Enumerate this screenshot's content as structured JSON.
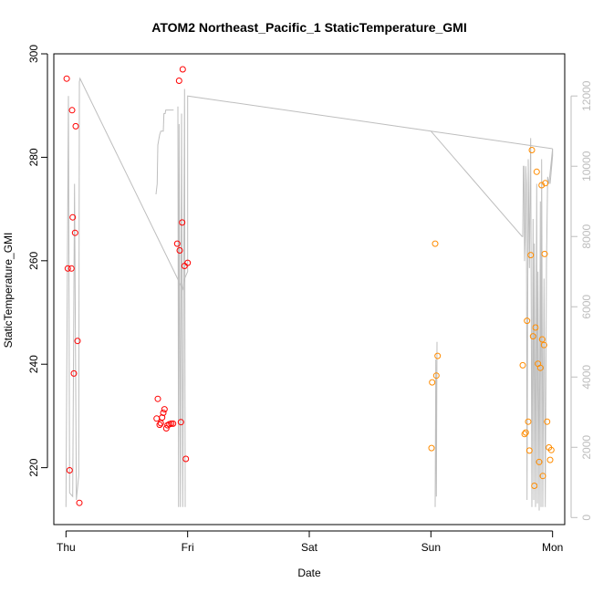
{
  "chart_data": {
    "type": "scatter",
    "title": "ATOM2 Northeast_Pacific_1 StaticTemperature_GMI",
    "xlabel": "Date",
    "ylabel": "StaticTemperature_GMI",
    "x_ticks": [
      {
        "label": "Thu",
        "value": 0
      },
      {
        "label": "Fri",
        "value": 1
      },
      {
        "label": "Sat",
        "value": 2
      },
      {
        "label": "Sun",
        "value": 3
      },
      {
        "label": "Mon",
        "value": 4
      }
    ],
    "xlim": [
      -0.1,
      4.1
    ],
    "ylim": [
      209,
      300
    ],
    "y_ticks": [
      220,
      240,
      260,
      280,
      300
    ],
    "y2lim": [
      -200,
      13200
    ],
    "y2_ticks": [
      0,
      2000,
      4000,
      6000,
      8000,
      10000,
      12000
    ],
    "y2_tick_labels": [
      "0",
      "2000",
      "4000",
      "6000",
      "8000",
      "10000",
      "12000"
    ],
    "colors": {
      "series_red": "#ff0000",
      "series_orange": "#ff8c00",
      "secondary_line": "#bebebe",
      "axis": "#000000",
      "right_axis": "#bebebe"
    },
    "series": [
      {
        "color": "#ff0000",
        "marker": "open-circle",
        "points": [
          [
            0.006,
            295.2
          ],
          [
            0.015,
            258.5
          ],
          [
            0.03,
            219.5
          ],
          [
            0.045,
            258.5
          ],
          [
            0.05,
            289.1
          ],
          [
            0.055,
            268.4
          ],
          [
            0.065,
            238.2
          ],
          [
            0.075,
            265.4
          ],
          [
            0.08,
            286.0
          ],
          [
            0.095,
            244.5
          ],
          [
            0.11,
            213.2
          ],
          [
            0.745,
            229.5
          ],
          [
            0.755,
            233.3
          ],
          [
            0.77,
            228.3
          ],
          [
            0.78,
            228.6
          ],
          [
            0.79,
            229.7
          ],
          [
            0.8,
            230.6
          ],
          [
            0.81,
            231.3
          ],
          [
            0.825,
            227.6
          ],
          [
            0.835,
            228.2
          ],
          [
            0.85,
            228.4
          ],
          [
            0.865,
            228.5
          ],
          [
            0.88,
            228.5
          ],
          [
            0.915,
            263.3
          ],
          [
            0.93,
            294.8
          ],
          [
            0.935,
            262.0
          ],
          [
            0.945,
            228.8
          ],
          [
            0.955,
            267.4
          ],
          [
            0.96,
            297.0
          ],
          [
            0.975,
            259.0
          ],
          [
            0.985,
            221.7
          ],
          [
            1.0,
            259.6
          ]
        ]
      },
      {
        "color": "#ff8c00",
        "marker": "open-circle",
        "points": [
          [
            3.005,
            223.8
          ],
          [
            3.01,
            236.5
          ],
          [
            3.035,
            263.3
          ],
          [
            3.045,
            237.8
          ],
          [
            3.055,
            241.6
          ],
          [
            3.755,
            239.8
          ],
          [
            3.77,
            226.5
          ],
          [
            3.78,
            226.8
          ],
          [
            3.79,
            248.4
          ],
          [
            3.8,
            228.9
          ],
          [
            3.81,
            223.3
          ],
          [
            3.82,
            261.1
          ],
          [
            3.83,
            281.4
          ],
          [
            3.84,
            245.4
          ],
          [
            3.85,
            216.5
          ],
          [
            3.86,
            247.1
          ],
          [
            3.87,
            277.2
          ],
          [
            3.88,
            240.1
          ],
          [
            3.89,
            221.1
          ],
          [
            3.9,
            239.3
          ],
          [
            3.91,
            274.6
          ],
          [
            3.915,
            244.8
          ],
          [
            3.92,
            218.4
          ],
          [
            3.93,
            243.7
          ],
          [
            3.935,
            261.3
          ],
          [
            3.94,
            275.0
          ],
          [
            3.955,
            228.9
          ],
          [
            3.97,
            223.9
          ],
          [
            3.98,
            221.5
          ],
          [
            3.99,
            223.4
          ]
        ]
      }
    ],
    "secondary_series": {
      "axis": "right",
      "color": "#bebebe",
      "points": [
        [
          0.0,
          300
        ],
        [
          0.02,
          12000
        ],
        [
          0.03,
          700
        ],
        [
          0.055,
          600
        ],
        [
          0.07,
          9500
        ],
        [
          0.085,
          500
        ],
        [
          0.105,
          1200
        ],
        [
          0.11,
          12400
        ],
        [
          0.115,
          12500
        ],
        [
          0.96,
          6500
        ],
        [
          0.975,
          6800
        ],
        [
          1.0,
          7000
        ],
        [
          1.0,
          12000
        ],
        [
          3.0,
          11000
        ],
        [
          3.75,
          8000
        ],
        [
          3.755,
          8000
        ],
        [
          3.76,
          10000
        ],
        [
          3.765,
          10000
        ],
        [
          3.77,
          7300
        ],
        [
          3.775,
          8000
        ],
        [
          3.78,
          10000
        ],
        [
          3.785,
          9500
        ],
        [
          3.79,
          500
        ],
        [
          3.8,
          10200
        ],
        [
          3.81,
          7100
        ],
        [
          3.815,
          9200
        ],
        [
          3.82,
          10800
        ],
        [
          3.83,
          300
        ],
        [
          3.84,
          8500
        ],
        [
          3.845,
          500
        ],
        [
          3.85,
          7800
        ],
        [
          3.86,
          300
        ],
        [
          3.87,
          9500
        ],
        [
          3.875,
          400
        ],
        [
          3.88,
          7000
        ],
        [
          3.89,
          200
        ],
        [
          3.9,
          9000
        ],
        [
          3.905,
          300
        ],
        [
          3.91,
          10200
        ],
        [
          3.92,
          300
        ],
        [
          3.93,
          6800
        ],
        [
          3.94,
          300
        ],
        [
          3.95,
          7200
        ],
        [
          3.96,
          9700
        ],
        [
          3.97,
          9500
        ],
        [
          4.0,
          10500
        ],
        [
          4.0,
          10300
        ],
        [
          3.98,
          9500
        ]
      ],
      "segments": [
        [
          [
            0.74,
            9200
          ],
          [
            0.75,
            9500
          ],
          [
            0.755,
            10600
          ],
          [
            0.765,
            10800
          ],
          [
            0.77,
            10900
          ],
          [
            0.78,
            11000
          ],
          [
            0.8,
            11000
          ],
          [
            0.805,
            11500
          ],
          [
            0.815,
            11500
          ],
          [
            0.82,
            11600
          ],
          [
            0.835,
            11600
          ],
          [
            0.86,
            11600
          ],
          [
            0.885,
            11600
          ]
        ],
        [
          [
            0.92,
            11700
          ],
          [
            0.925,
            300
          ],
          [
            0.93,
            11200
          ],
          [
            0.94,
            300
          ],
          [
            0.95,
            11500
          ],
          [
            0.96,
            300
          ],
          [
            0.975,
            12200
          ],
          [
            0.98,
            300
          ]
        ],
        [
          [
            3.035,
            300
          ],
          [
            3.04,
            4500
          ],
          [
            3.045,
            600
          ],
          [
            3.05,
            5000
          ]
        ],
        [
          [
            3.0,
            11000
          ],
          [
            4.0,
            10500
          ]
        ]
      ]
    },
    "grid": false,
    "legend": "none"
  }
}
